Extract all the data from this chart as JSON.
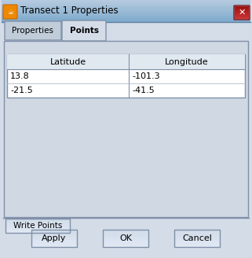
{
  "title": "Transect 1 Properties",
  "tab1": "Properties",
  "tab2": "Points",
  "col_headers": [
    "Latitude",
    "Longitude"
  ],
  "rows": [
    [
      "13.8",
      "-101.3"
    ],
    [
      "-21.5",
      "-41.5"
    ]
  ],
  "button_bottom": [
    "Apply",
    "OK",
    "Cancel"
  ],
  "button_left": "Write Points",
  "bg_outer": "#b8c8dc",
  "bg_main": "#d4dce8",
  "titlebar_top": "#7eaacc",
  "titlebar_bot": "#b8cce0",
  "table_bg": "#ffffff",
  "table_area_bg": "#d0d8e4",
  "button_bg": "#dce4f0",
  "border_color": "#7090b8",
  "text_color": "#000000",
  "header_bg": "#e0e8f0",
  "tab_active_bg": "#d4dce8",
  "tab_inactive_bg": "#c0ccd8",
  "close_btn_top": "#cc3333",
  "close_btn_bot": "#992222",
  "fig_width": 3.21,
  "fig_height": 3.28,
  "dpi": 100
}
